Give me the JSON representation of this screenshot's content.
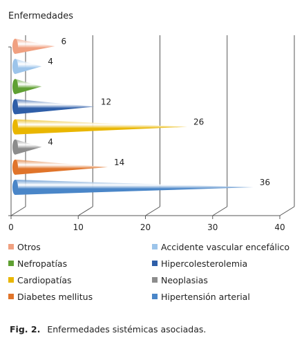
{
  "chart_data": {
    "type": "bar",
    "orientation": "horizontal",
    "title": "Enfermedades",
    "categories": [
      "Hipertensión arterial",
      "Diabetes mellitus",
      "Neoplasias",
      "Cardiopatías",
      "Hipercolesterolemia",
      "Nefropatías",
      "Accidente vascular encefálico",
      "Otros"
    ],
    "values": [
      36,
      14,
      4,
      26,
      12,
      4,
      4,
      6
    ],
    "data_labels": [
      "36",
      "14",
      "4",
      "26",
      "12",
      "",
      "4",
      "6"
    ],
    "colors": [
      "#4a86c8",
      "#e0742a",
      "#8c8c8c",
      "#e9b600",
      "#2e5ea8",
      "#5fa032",
      "#9cc4ea",
      "#f0a080"
    ],
    "xlim": [
      0,
      40
    ],
    "xticks": [
      "0",
      "10",
      "20",
      "30",
      "40"
    ],
    "grid": true,
    "legend_position": "bottom"
  },
  "legend": [
    {
      "label": "Otros",
      "color": "#f0a080"
    },
    {
      "label": "Accidente vascular encefálico",
      "color": "#9cc4ea"
    },
    {
      "label": "Nefropatías",
      "color": "#5fa032"
    },
    {
      "label": "Hipercolesterolemia",
      "color": "#2e5ea8"
    },
    {
      "label": "Cardiopatías",
      "color": "#e9b600"
    },
    {
      "label": "Neoplasias",
      "color": "#8c8c8c"
    },
    {
      "label": "Diabetes mellitus",
      "color": "#e0742a"
    },
    {
      "label": "Hipertensión arterial",
      "color": "#4a86c8"
    }
  ],
  "caption": {
    "label": "Fig.  2.",
    "text": "Enfermedades sistémicas asociadas."
  }
}
